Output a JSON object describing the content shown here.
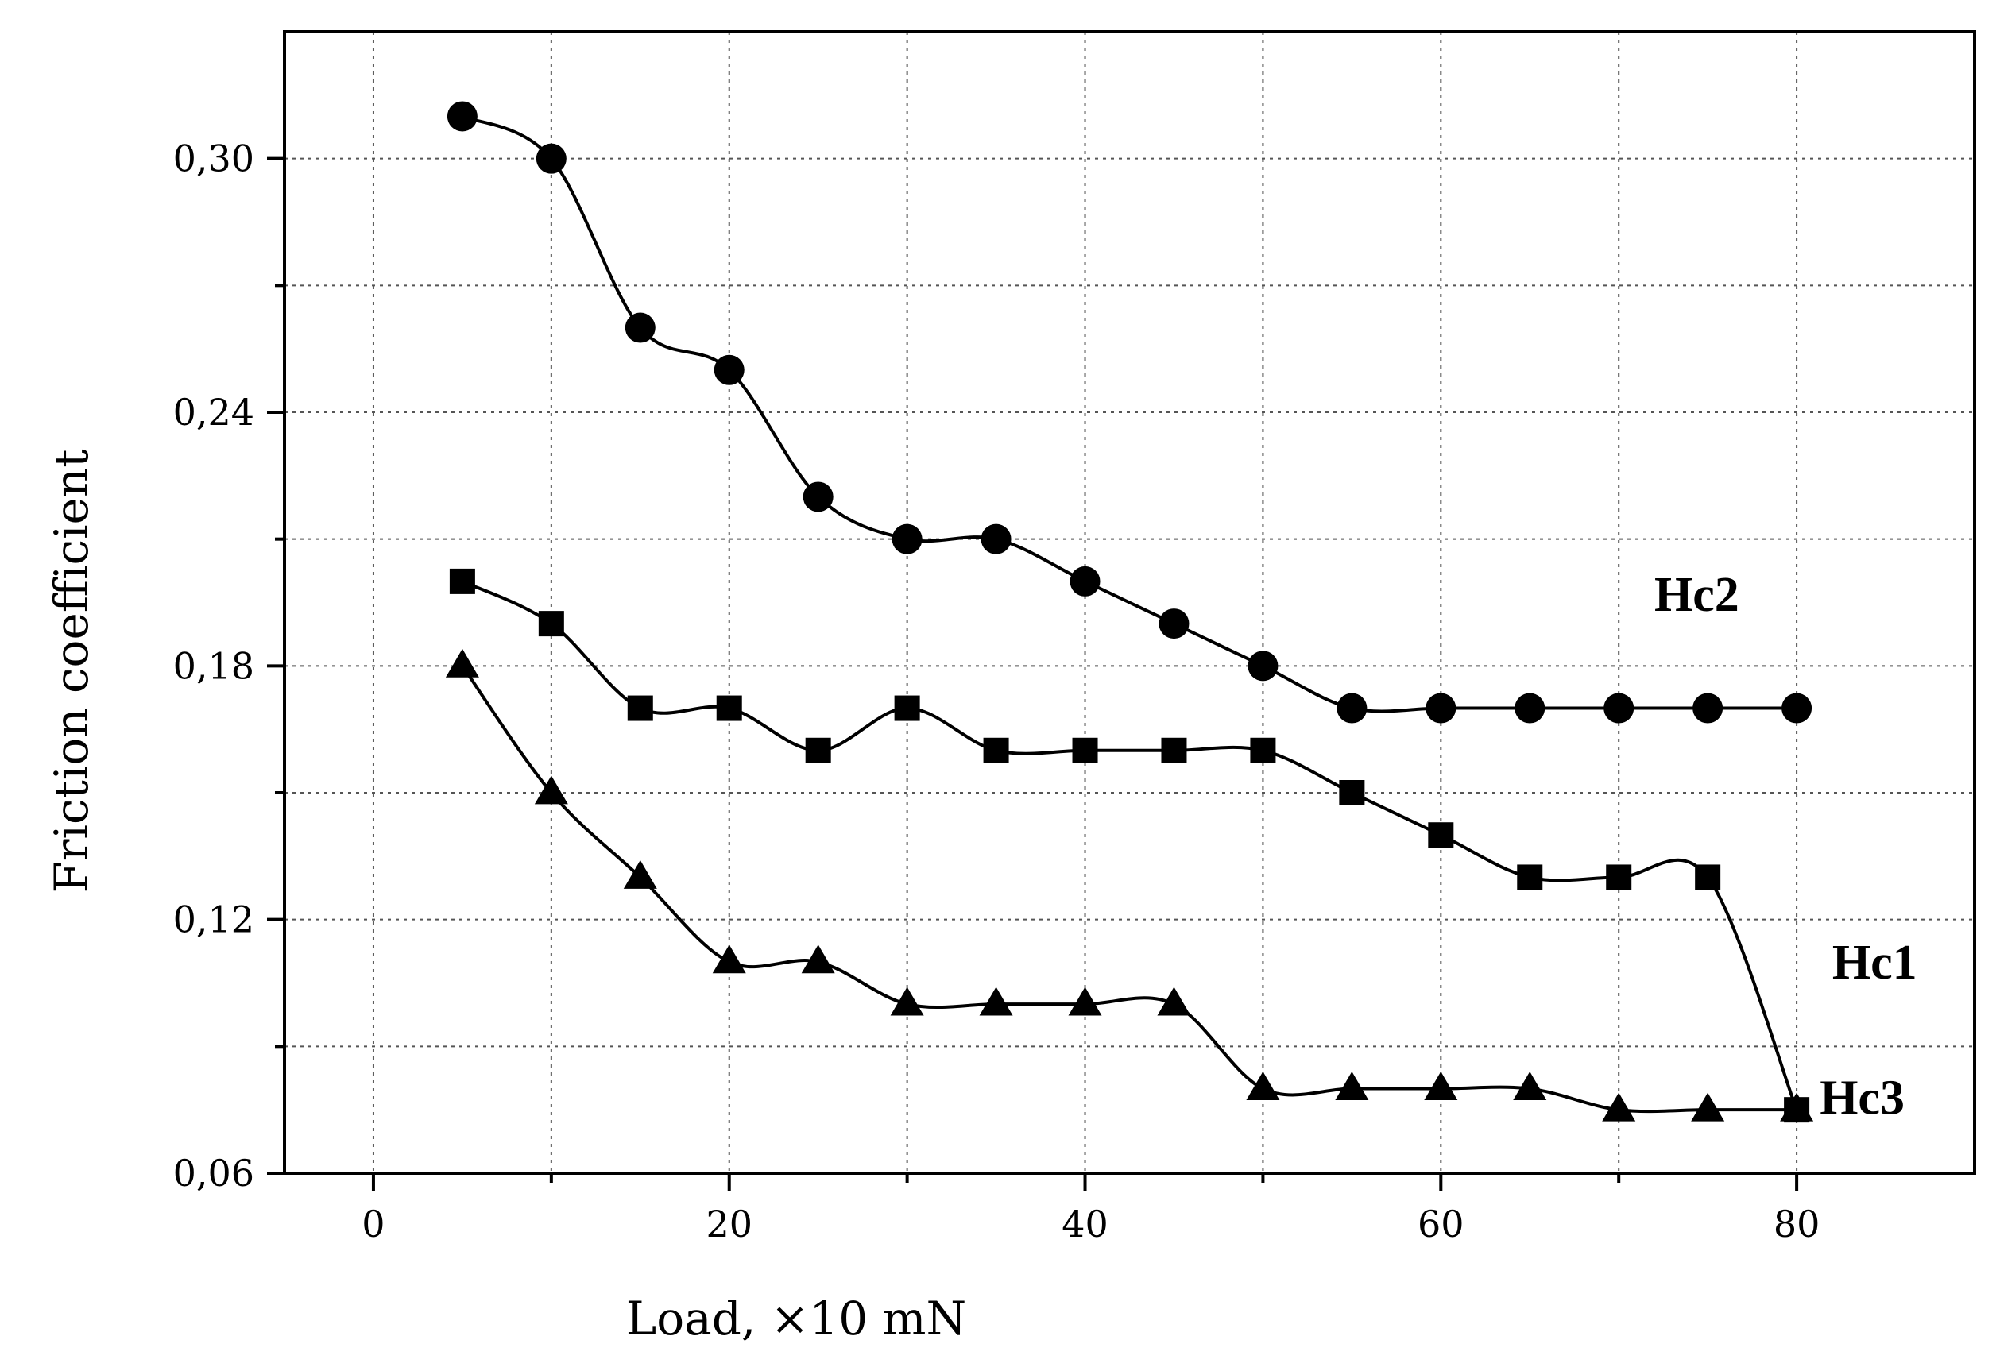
{
  "chart_data": {
    "type": "line",
    "title": "",
    "xlabel": "Load, ×10 mN",
    "ylabel": "Friction coefficient",
    "xlim": [
      -5,
      90
    ],
    "ylim": [
      0.06,
      0.33
    ],
    "x_ticks": [
      {
        "value": 0,
        "label": "0"
      },
      {
        "value": 20,
        "label": "20"
      },
      {
        "value": 40,
        "label": "40"
      },
      {
        "value": 60,
        "label": "60"
      },
      {
        "value": 80,
        "label": "80"
      }
    ],
    "y_ticks": [
      {
        "value": 0.06,
        "label": "0,06"
      },
      {
        "value": 0.12,
        "label": "0,12"
      },
      {
        "value": 0.18,
        "label": "0,18"
      },
      {
        "value": 0.24,
        "label": "0,24"
      },
      {
        "value": 0.3,
        "label": "0,30"
      }
    ],
    "x_grid": [
      0,
      10,
      20,
      30,
      40,
      50,
      60,
      70,
      80
    ],
    "y_grid": [
      0.09,
      0.12,
      0.15,
      0.18,
      0.21,
      0.24,
      0.27,
      0.3
    ],
    "grid": true,
    "series": [
      {
        "name": "Hc2",
        "marker": "circle",
        "label_at": [
          72,
          0.193
        ],
        "x": [
          5,
          10,
          15,
          20,
          25,
          30,
          35,
          40,
          45,
          50,
          55,
          60,
          65,
          70,
          75,
          80
        ],
        "values": [
          0.31,
          0.3,
          0.26,
          0.25,
          0.22,
          0.21,
          0.21,
          0.2,
          0.19,
          0.18,
          0.17,
          0.17,
          0.17,
          0.17,
          0.17,
          0.17
        ]
      },
      {
        "name": "Hc1",
        "marker": "square",
        "label_at": [
          82,
          0.106
        ],
        "x": [
          5,
          10,
          15,
          20,
          25,
          30,
          35,
          40,
          45,
          50,
          55,
          60,
          65,
          70,
          75,
          80
        ],
        "values": [
          0.2,
          0.19,
          0.17,
          0.17,
          0.16,
          0.17,
          0.16,
          0.16,
          0.16,
          0.16,
          0.15,
          0.14,
          0.13,
          0.13,
          0.13,
          0.075
        ]
      },
      {
        "name": "Hc3",
        "marker": "triangle",
        "label_at": [
          81.3,
          0.074
        ],
        "x": [
          5,
          10,
          15,
          20,
          25,
          30,
          35,
          40,
          45,
          50,
          55,
          60,
          65,
          70,
          75,
          80
        ],
        "values": [
          0.18,
          0.15,
          0.13,
          0.11,
          0.11,
          0.1,
          0.1,
          0.1,
          0.1,
          0.08,
          0.08,
          0.08,
          0.08,
          0.075,
          0.075,
          0.075
        ]
      }
    ]
  }
}
